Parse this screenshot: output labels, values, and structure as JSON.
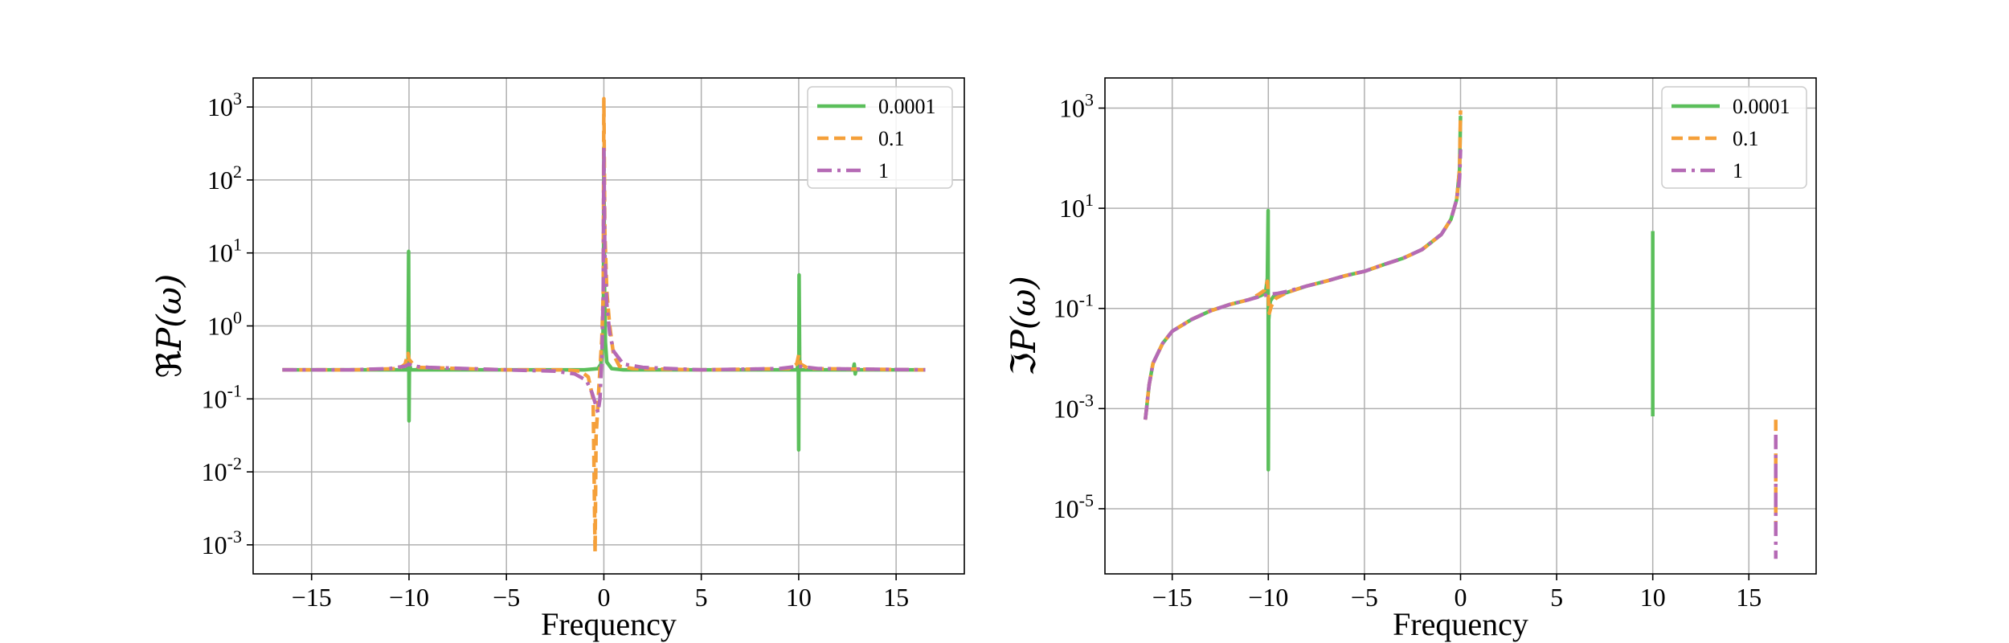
{
  "chart_data": [
    {
      "type": "line",
      "xlabel": "Frequency",
      "ylabel_prefix": "ℜ",
      "ylabel_func": "P(ω)",
      "yscale": "log",
      "xlim": [
        -18,
        18.5
      ],
      "ylim": [
        0.0004,
        2500
      ],
      "xticks": [
        -15,
        -10,
        -5,
        0,
        5,
        10,
        15
      ],
      "xtick_labels": [
        "−15",
        "−10",
        "−5",
        "0",
        "5",
        "10",
        "15"
      ],
      "yticks": [
        {
          "value": 0.001,
          "mant": "10",
          "exp": "-3"
        },
        {
          "value": 0.01,
          "mant": "10",
          "exp": "-2"
        },
        {
          "value": 0.1,
          "mant": "10",
          "exp": "-1"
        },
        {
          "value": 1,
          "mant": "10",
          "exp": "0"
        },
        {
          "value": 10,
          "mant": "10",
          "exp": "1"
        },
        {
          "value": 100,
          "mant": "10",
          "exp": "2"
        },
        {
          "value": 1000,
          "mant": "10",
          "exp": "3"
        }
      ],
      "grid": true,
      "legend_position": "top-right",
      "series": [
        {
          "name": "0.0001",
          "color": "#5bbf5b",
          "style": "solid",
          "points": [
            [
              -16.5,
              0.25
            ],
            [
              -13,
              0.25
            ],
            [
              -10.1,
              0.25
            ],
            [
              -10.05,
              0.3
            ],
            [
              -10.02,
              10.5
            ],
            [
              -10,
              0.05
            ],
            [
              -9.98,
              0.3
            ],
            [
              -9.9,
              0.25
            ],
            [
              -5,
              0.25
            ],
            [
              -1,
              0.25
            ],
            [
              -0.3,
              0.26
            ],
            [
              -0.15,
              0.3
            ],
            [
              -0.05,
              0.6
            ],
            [
              -0.02,
              2
            ],
            [
              0,
              280
            ],
            [
              0.03,
              4
            ],
            [
              0.08,
              0.6
            ],
            [
              0.15,
              0.32
            ],
            [
              0.4,
              0.26
            ],
            [
              1,
              0.25
            ],
            [
              5,
              0.25
            ],
            [
              9.9,
              0.25
            ],
            [
              9.98,
              0.3
            ],
            [
              10,
              0.02
            ],
            [
              10.02,
              5
            ],
            [
              10.05,
              0.3
            ],
            [
              10.1,
              0.25
            ],
            [
              12.8,
              0.25
            ],
            [
              12.85,
              0.3
            ],
            [
              12.9,
              0.22
            ],
            [
              12.95,
              0.25
            ],
            [
              16.5,
              0.25
            ]
          ]
        },
        {
          "name": "0.1",
          "color": "#f5a03a",
          "style": "dashed",
          "points": [
            [
              -16.5,
              0.25
            ],
            [
              -13,
              0.25
            ],
            [
              -10.5,
              0.26
            ],
            [
              -10.2,
              0.3
            ],
            [
              -10.05,
              0.42
            ],
            [
              -10,
              0.35
            ],
            [
              -9.8,
              0.3
            ],
            [
              -9.5,
              0.27
            ],
            [
              -5,
              0.25
            ],
            [
              -2,
              0.25
            ],
            [
              -1.2,
              0.24
            ],
            [
              -0.8,
              0.2
            ],
            [
              -0.55,
              0.1
            ],
            [
              -0.45,
              0.0008
            ],
            [
              -0.4,
              0.03
            ],
            [
              -0.25,
              0.15
            ],
            [
              -0.1,
              0.7
            ],
            [
              -0.03,
              3
            ],
            [
              0,
              1300
            ],
            [
              0.05,
              20
            ],
            [
              0.15,
              3
            ],
            [
              0.3,
              1
            ],
            [
              0.5,
              0.4
            ],
            [
              0.8,
              0.28
            ],
            [
              1.5,
              0.26
            ],
            [
              5,
              0.25
            ],
            [
              9.5,
              0.26
            ],
            [
              9.9,
              0.3
            ],
            [
              10,
              0.4
            ],
            [
              10.1,
              0.3
            ],
            [
              10.5,
              0.26
            ],
            [
              16.5,
              0.25
            ]
          ]
        },
        {
          "name": "1",
          "color": "#b56ab5",
          "style": "dashdot",
          "points": [
            [
              -16.5,
              0.25
            ],
            [
              -13,
              0.25
            ],
            [
              -11,
              0.26
            ],
            [
              -10.2,
              0.28
            ],
            [
              -10,
              0.3
            ],
            [
              -9.8,
              0.28
            ],
            [
              -9,
              0.27
            ],
            [
              -5,
              0.25
            ],
            [
              -2.5,
              0.24
            ],
            [
              -1.5,
              0.22
            ],
            [
              -0.9,
              0.18
            ],
            [
              -0.6,
              0.12
            ],
            [
              -0.4,
              0.08
            ],
            [
              -0.3,
              0.065
            ],
            [
              -0.2,
              0.1
            ],
            [
              -0.1,
              0.4
            ],
            [
              -0.03,
              3
            ],
            [
              0,
              280
            ],
            [
              0.05,
              10
            ],
            [
              0.15,
              2
            ],
            [
              0.3,
              0.8
            ],
            [
              0.5,
              0.45
            ],
            [
              1,
              0.3
            ],
            [
              2,
              0.27
            ],
            [
              5,
              0.25
            ],
            [
              9,
              0.26
            ],
            [
              10,
              0.28
            ],
            [
              11,
              0.26
            ],
            [
              16.5,
              0.25
            ]
          ]
        }
      ]
    },
    {
      "type": "line",
      "xlabel": "Frequency",
      "ylabel_prefix": "ℑ",
      "ylabel_func": "P(ω)",
      "yscale": "log",
      "xlim": [
        -18.5,
        18.5
      ],
      "ylim": [
        5e-07,
        4000
      ],
      "xticks": [
        -15,
        -10,
        -5,
        0,
        5,
        10,
        15
      ],
      "xtick_labels": [
        "−15",
        "−10",
        "−5",
        "0",
        "5",
        "10",
        "15"
      ],
      "yticks": [
        {
          "value": 1e-05,
          "mant": "10",
          "exp": "-5"
        },
        {
          "value": 0.001,
          "mant": "10",
          "exp": "-3"
        },
        {
          "value": 0.1,
          "mant": "10",
          "exp": "-1"
        },
        {
          "value": 10,
          "mant": "10",
          "exp": "1"
        },
        {
          "value": 1000,
          "mant": "10",
          "exp": "3"
        }
      ],
      "grid": true,
      "legend_position": "top-right",
      "series": [
        {
          "name": "0.0001",
          "color": "#5bbf5b",
          "style": "solid",
          "segments": [
            [
              [
                -16.4,
                0.0006
              ],
              [
                -16.2,
                0.003
              ],
              [
                -16,
                0.008
              ],
              [
                -15.5,
                0.02
              ],
              [
                -15,
                0.035
              ],
              [
                -14,
                0.06
              ],
              [
                -13,
                0.09
              ],
              [
                -12,
                0.12
              ],
              [
                -11,
                0.15
              ],
              [
                -10.4,
                0.18
              ],
              [
                -10.15,
                0.2
              ],
              [
                -10.05,
                0.4
              ],
              [
                -10.01,
                9
              ],
              [
                -10,
                6e-05
              ],
              [
                -9.98,
                0.06
              ],
              [
                -9.9,
                0.14
              ],
              [
                -9.7,
                0.18
              ],
              [
                -9,
                0.21
              ],
              [
                -8,
                0.28
              ],
              [
                -7,
                0.35
              ],
              [
                -6,
                0.45
              ],
              [
                -5,
                0.55
              ],
              [
                -4,
                0.75
              ],
              [
                -3,
                1
              ],
              [
                -2,
                1.5
              ],
              [
                -1,
                3
              ],
              [
                -0.5,
                6
              ],
              [
                -0.2,
                15
              ],
              [
                -0.05,
                60
              ],
              [
                0,
                700
              ]
            ],
            [
              [
                10,
                0.0007
              ],
              [
                10,
                3.5
              ]
            ]
          ]
        },
        {
          "name": "0.1",
          "color": "#f5a03a",
          "style": "dashed",
          "segments": [
            [
              [
                -16.4,
                0.0006
              ],
              [
                -16.2,
                0.003
              ],
              [
                -16,
                0.008
              ],
              [
                -15.5,
                0.02
              ],
              [
                -15,
                0.035
              ],
              [
                -14,
                0.06
              ],
              [
                -13,
                0.09
              ],
              [
                -12,
                0.12
              ],
              [
                -11,
                0.15
              ],
              [
                -10.5,
                0.19
              ],
              [
                -10.2,
                0.23
              ],
              [
                -10.05,
                0.35
              ],
              [
                -9.95,
                0.08
              ],
              [
                -9.85,
                0.11
              ],
              [
                -9.6,
                0.16
              ],
              [
                -9,
                0.21
              ],
              [
                -8,
                0.28
              ],
              [
                -7,
                0.35
              ],
              [
                -6,
                0.45
              ],
              [
                -5,
                0.55
              ],
              [
                -4,
                0.75
              ],
              [
                -3,
                1
              ],
              [
                -2,
                1.5
              ],
              [
                -1,
                3
              ],
              [
                -0.5,
                6
              ],
              [
                -0.2,
                15
              ],
              [
                -0.05,
                60
              ],
              [
                0,
                900
              ]
            ],
            [
              [
                16.4,
                0.0006
              ],
              [
                16.4,
                5e-06
              ]
            ]
          ]
        },
        {
          "name": "1",
          "color": "#b56ab5",
          "style": "dashdot",
          "segments": [
            [
              [
                -16.4,
                0.0006
              ],
              [
                -16.2,
                0.003
              ],
              [
                -16,
                0.008
              ],
              [
                -15.5,
                0.02
              ],
              [
                -15,
                0.035
              ],
              [
                -14,
                0.06
              ],
              [
                -13,
                0.09
              ],
              [
                -12,
                0.12
              ],
              [
                -11,
                0.15
              ],
              [
                -10.5,
                0.17
              ],
              [
                -10,
                0.19
              ],
              [
                -9.5,
                0.2
              ],
              [
                -9,
                0.22
              ],
              [
                -8,
                0.28
              ],
              [
                -7,
                0.35
              ],
              [
                -6,
                0.45
              ],
              [
                -5,
                0.55
              ],
              [
                -4,
                0.75
              ],
              [
                -3,
                1
              ],
              [
                -2,
                1.5
              ],
              [
                -1,
                3
              ],
              [
                -0.5,
                6
              ],
              [
                -0.2,
                15
              ],
              [
                -0.05,
                40
              ],
              [
                0,
                150
              ]
            ],
            [
              [
                16.4,
                0.0003
              ],
              [
                16.4,
                1e-06
              ]
            ]
          ]
        }
      ]
    }
  ]
}
